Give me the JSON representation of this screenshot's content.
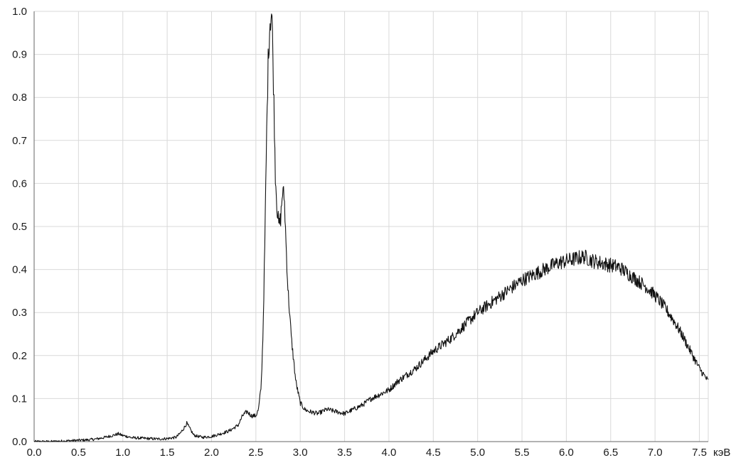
{
  "chart_data": {
    "type": "line",
    "xlabel": "",
    "x_unit": "кэВ",
    "ylabel": "",
    "xlim": [
      0,
      7.6
    ],
    "ylim": [
      0,
      1.0
    ],
    "grid": true,
    "x_ticks": [
      "0.0",
      "0.5",
      "1.0",
      "1.5",
      "2.0",
      "2.5",
      "3.0",
      "3.5",
      "4.0",
      "4.5",
      "5.0",
      "5.5",
      "6.0",
      "6.5",
      "7.0",
      "7.5"
    ],
    "y_ticks": [
      "0.0",
      "0.1",
      "0.2",
      "0.3",
      "0.4",
      "0.5",
      "0.6",
      "0.7",
      "0.8",
      "0.9",
      "1.0"
    ],
    "series": [
      {
        "color": "#111111",
        "x": [
          0.0,
          0.1,
          0.2,
          0.3,
          0.4,
          0.5,
          0.6,
          0.7,
          0.8,
          0.9,
          0.95,
          1.0,
          1.05,
          1.1,
          1.2,
          1.3,
          1.4,
          1.5,
          1.6,
          1.65,
          1.7,
          1.72,
          1.75,
          1.8,
          1.85,
          1.9,
          2.0,
          2.1,
          2.2,
          2.3,
          2.35,
          2.4,
          2.45,
          2.5,
          2.53,
          2.56,
          2.58,
          2.6,
          2.62,
          2.64,
          2.66,
          2.68,
          2.7,
          2.72,
          2.74,
          2.76,
          2.78,
          2.8,
          2.82,
          2.84,
          2.86,
          2.88,
          2.9,
          2.92,
          2.95,
          3.0,
          3.05,
          3.1,
          3.2,
          3.3,
          3.4,
          3.5,
          3.6,
          3.7,
          3.8,
          3.9,
          4.0,
          4.1,
          4.2,
          4.3,
          4.4,
          4.5,
          4.6,
          4.7,
          4.8,
          4.9,
          5.0,
          5.1,
          5.2,
          5.3,
          5.4,
          5.5,
          5.6,
          5.7,
          5.8,
          5.9,
          6.0,
          6.1,
          6.2,
          6.3,
          6.4,
          6.5,
          6.6,
          6.7,
          6.8,
          6.9,
          7.0,
          7.1,
          7.2,
          7.3,
          7.4,
          7.5,
          7.6
        ],
        "values": [
          0.0,
          0.0,
          0.0,
          0.001,
          0.002,
          0.003,
          0.004,
          0.006,
          0.01,
          0.015,
          0.018,
          0.014,
          0.012,
          0.009,
          0.008,
          0.007,
          0.006,
          0.007,
          0.01,
          0.02,
          0.035,
          0.043,
          0.032,
          0.015,
          0.012,
          0.01,
          0.012,
          0.018,
          0.025,
          0.038,
          0.06,
          0.07,
          0.06,
          0.06,
          0.075,
          0.13,
          0.25,
          0.45,
          0.7,
          0.9,
          0.98,
          1.0,
          0.82,
          0.62,
          0.54,
          0.5,
          0.52,
          0.58,
          0.57,
          0.46,
          0.36,
          0.3,
          0.24,
          0.2,
          0.14,
          0.09,
          0.075,
          0.07,
          0.065,
          0.075,
          0.07,
          0.065,
          0.075,
          0.085,
          0.1,
          0.11,
          0.12,
          0.14,
          0.155,
          0.17,
          0.19,
          0.21,
          0.225,
          0.24,
          0.26,
          0.28,
          0.3,
          0.315,
          0.33,
          0.345,
          0.36,
          0.375,
          0.385,
          0.395,
          0.405,
          0.415,
          0.42,
          0.425,
          0.43,
          0.42,
          0.415,
          0.41,
          0.405,
          0.39,
          0.375,
          0.36,
          0.34,
          0.315,
          0.285,
          0.25,
          0.21,
          0.17,
          0.14
        ]
      }
    ]
  }
}
